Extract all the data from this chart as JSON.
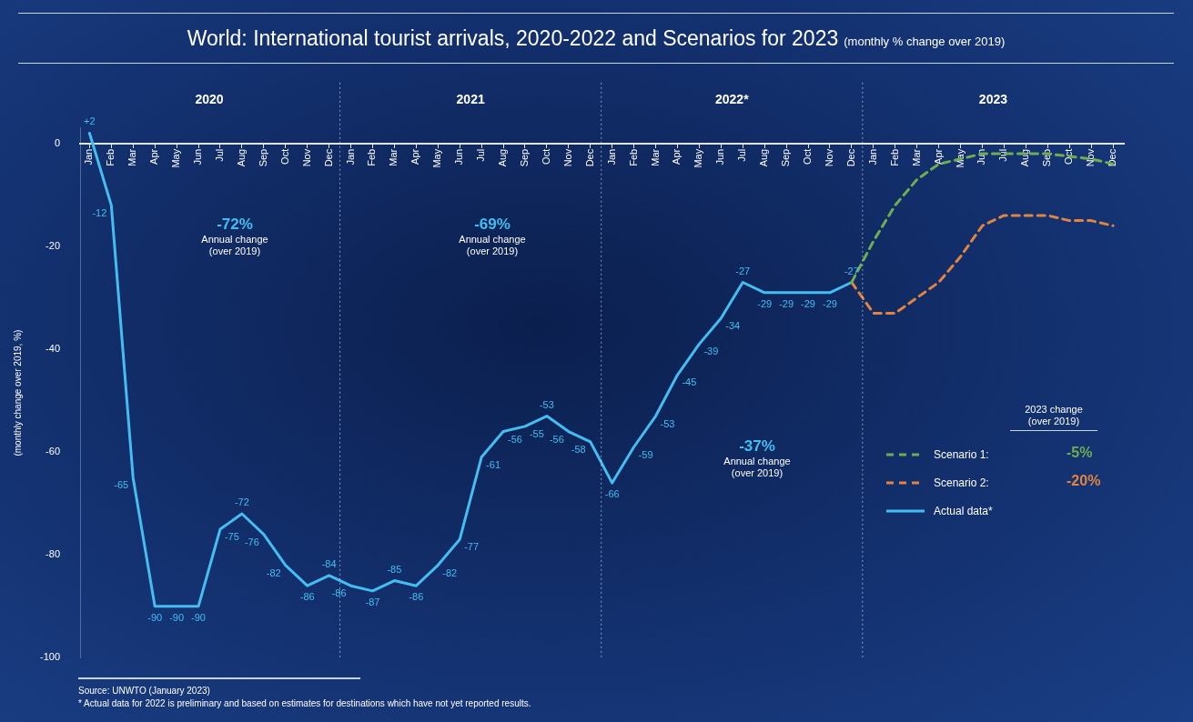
{
  "chart_data": {
    "type": "line",
    "title": "World: International tourist arrivals, 2020-2022 and Scenarios for 2023",
    "subtitle": "(monthly % change over 2019)",
    "ylabel": "(monthly change over 2019, %)",
    "legend_title": "2023 change\n(over 2019)",
    "legend": "bottom right",
    "xlim": [
      "2019-12-18",
      "2023-12-16"
    ],
    "xticks": [
      {
        "value": "2020-01",
        "label": "Jan"
      },
      {
        "value": "2020-02",
        "label": "Feb"
      },
      {
        "value": "2020-03",
        "label": "Mar"
      },
      {
        "value": "2020-04",
        "label": "Apr"
      },
      {
        "value": "2020-05",
        "label": "May"
      },
      {
        "value": "2020-06",
        "label": "Jun"
      },
      {
        "value": "2020-07",
        "label": "Jul"
      },
      {
        "value": "2020-08",
        "label": "Aug"
      },
      {
        "value": "2020-09",
        "label": "Sep"
      },
      {
        "value": "2020-10",
        "label": "Oct"
      },
      {
        "value": "2020-11",
        "label": "Nov"
      },
      {
        "value": "2020-12",
        "label": "Dec"
      },
      {
        "value": "2021-01",
        "label": "Jan"
      },
      {
        "value": "2021-02",
        "label": "Feb"
      },
      {
        "value": "2021-03",
        "label": "Mar"
      },
      {
        "value": "2021-04",
        "label": "Apr"
      },
      {
        "value": "2021-05",
        "label": "May"
      },
      {
        "value": "2021-06",
        "label": "Jun"
      },
      {
        "value": "2021-07",
        "label": "Jul"
      },
      {
        "value": "2021-08",
        "label": "Aug"
      },
      {
        "value": "2021-09",
        "label": "Sep"
      },
      {
        "value": "2021-10",
        "label": "Oct"
      },
      {
        "value": "2021-11",
        "label": "Nov"
      },
      {
        "value": "2021-12",
        "label": "Dec"
      },
      {
        "value": "2022-01",
        "label": "Jan"
      },
      {
        "value": "2022-02",
        "label": "Feb"
      },
      {
        "value": "2022-03",
        "label": "Mar"
      },
      {
        "value": "2022-04",
        "label": "Apr"
      },
      {
        "value": "2022-05",
        "label": "May"
      },
      {
        "value": "2022-06",
        "label": "Jun"
      },
      {
        "value": "2022-07",
        "label": "Jul"
      },
      {
        "value": "2022-08",
        "label": "Aug"
      },
      {
        "value": "2022-09",
        "label": "Sep"
      },
      {
        "value": "2022-10",
        "label": "Oct"
      },
      {
        "value": "2022-11",
        "label": "Nov"
      },
      {
        "value": "2022-12",
        "label": "Dec"
      },
      {
        "value": "2023-01",
        "label": "Jan"
      },
      {
        "value": "2023-02",
        "label": "Feb"
      },
      {
        "value": "2023-03",
        "label": "Mar"
      },
      {
        "value": "2023-04",
        "label": "Apr"
      },
      {
        "value": "2023-05",
        "label": "May"
      },
      {
        "value": "2023-06",
        "label": "Jun"
      },
      {
        "value": "2023-07",
        "label": "Jul"
      },
      {
        "value": "2023-08",
        "label": "Aug"
      },
      {
        "value": "2023-09",
        "label": "Sep"
      },
      {
        "value": "2023-10",
        "label": "Oct"
      },
      {
        "value": "2023-11",
        "label": "Nov"
      },
      {
        "value": "2023-12",
        "label": "Dec"
      }
    ],
    "x2lim": [
      "2019-12-18",
      "2023-12-16"
    ],
    "x2ticks": [
      {
        "value": "2020-06-16",
        "label": "2020"
      },
      {
        "value": "2021-06-16",
        "label": "2021"
      },
      {
        "value": "2022-06-16",
        "label": "2022*"
      },
      {
        "value": "2023-06-16",
        "label": "2023"
      }
    ],
    "ylim": [
      -100,
      3
    ],
    "yticks": [
      0,
      -20,
      -40,
      -60,
      -80,
      -100
    ],
    "grid": false,
    "marker": "none",
    "ref_lines": [
      {
        "axis": "x",
        "value": "2020-12-16",
        "line_style": "dotted"
      },
      {
        "axis": "x",
        "value": "2021-12-16",
        "line_style": "dotted"
      },
      {
        "axis": "x",
        "value": "2022-12-16",
        "line_style": "dotted"
      }
    ],
    "series": [
      {
        "name": "Scenario 1:",
        "color": "#6fae4e",
        "line_style": "dashed",
        "x": [
          "2022-12",
          "2023-01",
          "2023-02",
          "2023-03",
          "2023-04",
          "2023-05",
          "2023-06",
          "2023-07",
          "2023-08",
          "2023-09",
          "2023-10",
          "2023-11",
          "2023-12"
        ],
        "values": [
          -27,
          -19,
          -12,
          -7,
          -4,
          -3,
          -2,
          -2,
          -2,
          -2,
          -2.5,
          -3,
          -4
        ]
      },
      {
        "name": "Scenario 2:",
        "color": "#e0843f",
        "line_style": "dashed",
        "x": [
          "2022-12",
          "2023-01",
          "2023-02",
          "2023-03",
          "2023-04",
          "2023-05",
          "2023-06",
          "2023-07",
          "2023-08",
          "2023-09",
          "2023-10",
          "2023-11",
          "2023-12"
        ],
        "values": [
          -27,
          -33,
          -33,
          -30,
          -27,
          -22,
          -16,
          -14,
          -14,
          -14,
          -15,
          -15,
          -16
        ]
      },
      {
        "name": "Actual data*",
        "color": "#45bdf0",
        "line_style": "solid",
        "x": [
          "2020-01",
          "2020-02",
          "2020-03",
          "2020-04",
          "2020-05",
          "2020-06",
          "2020-07",
          "2020-08",
          "2020-09",
          "2020-10",
          "2020-11",
          "2020-12",
          "2021-01",
          "2021-02",
          "2021-03",
          "2021-04",
          "2021-05",
          "2021-06",
          "2021-07",
          "2021-08",
          "2021-09",
          "2021-10",
          "2021-11",
          "2021-12",
          "2022-01",
          "2022-02",
          "2022-03",
          "2022-04",
          "2022-05",
          "2022-06",
          "2022-07",
          "2022-08",
          "2022-09",
          "2022-10",
          "2022-11",
          "2022-12"
        ],
        "values": [
          2,
          -12,
          -65,
          -90,
          -90,
          -90,
          -75,
          -72,
          -76,
          -82,
          -86,
          -84,
          -86,
          -87,
          -85,
          -86,
          -82,
          -77,
          -61,
          -56,
          -55,
          -53,
          -56,
          -58,
          -66,
          -59,
          -53,
          -45,
          -39,
          -34,
          -27,
          -29,
          -29,
          -29,
          -29,
          -27
        ],
        "value_labels": [
          "+2",
          "-12",
          "-65",
          "-90",
          "-90",
          "-90",
          "-75",
          "-72",
          "-76",
          "-82",
          "-86",
          "-84",
          "-86",
          "-87",
          "-85",
          "-86",
          "-82",
          "-77",
          "-61",
          "-56",
          "-55",
          "-53",
          "-56",
          "-58",
          "-66",
          "-59",
          "-53",
          "-45",
          "-39",
          "-34",
          "-27",
          "-29",
          "-29",
          "-29",
          "-29",
          "-27"
        ]
      }
    ],
    "annotations": [
      "-72%\nAnnual change\n(over 2019)",
      "-69%\nAnnual change\n(over 2019)",
      "-37%\nAnnual change\n(over 2019)",
      "-5%",
      "-20%",
      "Source: UNWTO (January 2023)",
      "* Actual data for 2022 is preliminary and based on estimates for destinations which have not yet reported results."
    ]
  }
}
